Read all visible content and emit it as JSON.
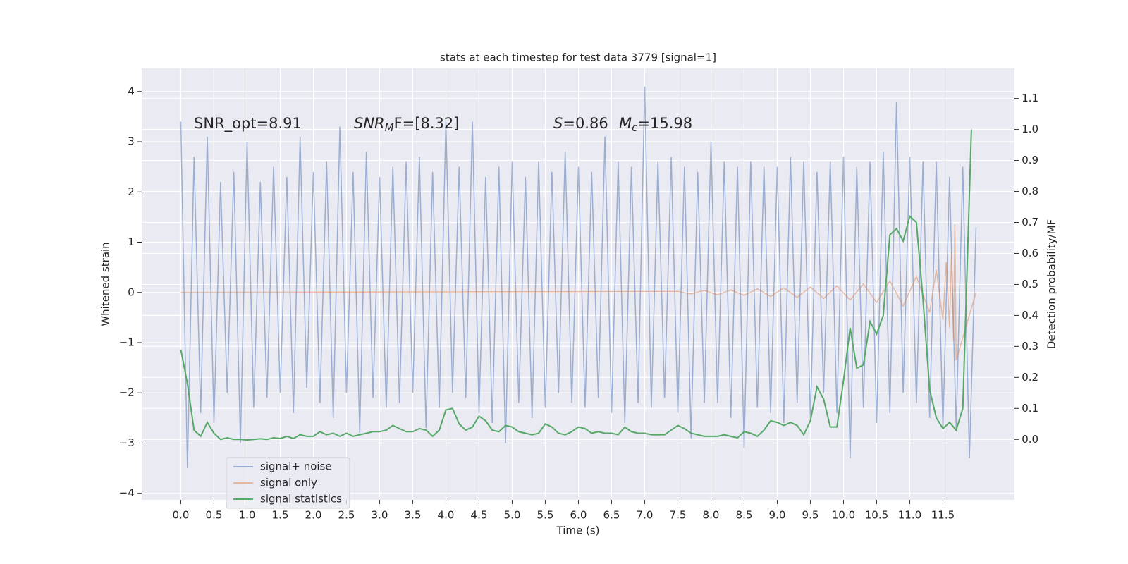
{
  "chart_data": {
    "type": "line",
    "title": "stats at each timestep for test data 3779 [signal=1]",
    "xlabel": "Time (s)",
    "ylabel": "Whitened strain",
    "y2label": "Detection probability/MF",
    "xlim": [
      -0.59,
      12.58
    ],
    "ylim": [
      -4.13,
      4.46
    ],
    "y2lim": [
      -0.195,
      1.197
    ],
    "xticks": [
      {
        "value": 0,
        "label": "0.0"
      },
      0.5,
      {
        "value": 1,
        "label": "1.0"
      },
      1.5,
      {
        "value": 2,
        "label": "2.0"
      },
      2.5,
      {
        "value": 3,
        "label": "3.0"
      },
      3.5,
      {
        "value": 4,
        "label": "4.0"
      },
      4.5,
      {
        "value": 5,
        "label": "5.0"
      },
      5.5,
      {
        "value": 6,
        "label": "6.0"
      },
      6.5,
      {
        "value": 7,
        "label": "7.0"
      },
      7.5,
      {
        "value": 8,
        "label": "8.0"
      },
      8.5,
      {
        "value": 9,
        "label": "9.0"
      },
      9.5,
      {
        "value": 10,
        "label": "10.0"
      },
      10.5,
      {
        "value": 11,
        "label": "11.0"
      },
      11.5
    ],
    "yticks": [
      {
        "value": -4,
        "label": "−4"
      },
      {
        "value": -3,
        "label": "−3"
      },
      {
        "value": -2,
        "label": "−2"
      },
      {
        "value": -1,
        "label": "−1"
      },
      0,
      1,
      2,
      3,
      4
    ],
    "y2ticks": [
      {
        "value": 0,
        "label": "0.0"
      },
      0.1,
      0.2,
      0.3,
      0.4,
      0.5,
      0.6,
      0.7,
      0.8,
      0.9,
      {
        "value": 1,
        "label": "1.0"
      },
      1.1
    ],
    "grid": true,
    "legend": "lower left",
    "annotations": [
      {
        "parts": [
          {
            "text": "SNR_opt=8.91",
            "style": "normal"
          }
        ]
      },
      {
        "parts": [
          {
            "text": "SNR",
            "style": "italic"
          },
          {
            "text": "M",
            "style": "italic-sub"
          },
          {
            "text": "F=[8.32]",
            "style": "mixed"
          }
        ]
      },
      {
        "parts": [
          {
            "text": "S",
            "style": "italic"
          },
          {
            "text": "=0.86",
            "style": "normal"
          }
        ]
      },
      {
        "parts": [
          {
            "text": "M",
            "style": "italic"
          },
          {
            "text": "c",
            "style": "italic-sub"
          },
          {
            "text": "=15.98",
            "style": "normal"
          }
        ]
      }
    ],
    "series": [
      {
        "name": "signal+ noise",
        "color": "#4c72b0",
        "opacity": 0.5,
        "axis": "y",
        "x": [
          0,
          0.1,
          0.2,
          0.3,
          0.4,
          0.5,
          0.6,
          0.7,
          0.8,
          0.9,
          1,
          1.1,
          1.2,
          1.3,
          1.4,
          1.5,
          1.6,
          1.7,
          1.8,
          1.9,
          2,
          2.1,
          2.2,
          2.3,
          2.4,
          2.5,
          2.6,
          2.7,
          2.8,
          2.9,
          3,
          3.1,
          3.2,
          3.3,
          3.4,
          3.5,
          3.6,
          3.7,
          3.8,
          3.9,
          4,
          4.1,
          4.2,
          4.3,
          4.4,
          4.5,
          4.6,
          4.7,
          4.8,
          4.9,
          5,
          5.1,
          5.2,
          5.3,
          5.4,
          5.5,
          5.6,
          5.7,
          5.8,
          5.9,
          6,
          6.1,
          6.2,
          6.3,
          6.4,
          6.5,
          6.6,
          6.7,
          6.8,
          6.9,
          7,
          7.1,
          7.2,
          7.3,
          7.4,
          7.5,
          7.6,
          7.7,
          7.8,
          7.9,
          8,
          8.1,
          8.2,
          8.3,
          8.4,
          8.5,
          8.6,
          8.7,
          8.8,
          8.9,
          9,
          9.1,
          9.2,
          9.3,
          9.4,
          9.5,
          9.6,
          9.7,
          9.8,
          9.9,
          10,
          10.1,
          10.2,
          10.3,
          10.4,
          10.5,
          10.6,
          10.7,
          10.8,
          10.9,
          11,
          11.1,
          11.2,
          11.3,
          11.4,
          11.5,
          11.6,
          11.7,
          11.8,
          11.9,
          12
        ],
        "values": [
          3.4,
          -3.5,
          2.7,
          -2.4,
          3.1,
          -2.6,
          2.2,
          -2.0,
          2.4,
          -3.0,
          3.0,
          -2.3,
          2.2,
          -2.1,
          2.5,
          -2.0,
          2.3,
          -2.4,
          3.1,
          -1.9,
          2.4,
          -2.2,
          2.6,
          -2.5,
          3.3,
          -2.0,
          2.4,
          -2.8,
          2.8,
          -2.1,
          2.3,
          -2.3,
          2.5,
          -2.2,
          2.6,
          -2.0,
          2.7,
          -2.7,
          2.4,
          -2.3,
          3.4,
          -2.0,
          2.5,
          -2.1,
          3.4,
          -2.4,
          2.3,
          -2.6,
          2.5,
          -3.0,
          2.6,
          -2.2,
          2.3,
          -2.5,
          2.6,
          -2.3,
          2.4,
          -2.0,
          2.8,
          -2.2,
          2.5,
          -2.3,
          2.4,
          -2.1,
          3.1,
          -2.4,
          2.6,
          -2.6,
          2.5,
          -2.2,
          4.1,
          -2.3,
          2.6,
          -2.1,
          2.7,
          -2.4,
          2.5,
          -2.9,
          2.4,
          -2.2,
          3.0,
          -2.2,
          2.6,
          -2.5,
          2.5,
          -3.1,
          2.6,
          -2.3,
          2.5,
          -2.4,
          2.5,
          -2.6,
          2.7,
          -2.2,
          2.6,
          -2.5,
          2.4,
          -2.0,
          2.6,
          -2.4,
          2.7,
          -3.3,
          2.5,
          -2.3,
          2.6,
          -2.6,
          2.8,
          -2.4,
          3.8,
          -2.0,
          2.7,
          -2.2,
          2.6,
          -2.5,
          2.6,
          -2.7,
          2.3,
          -2.7,
          2.5,
          -3.3,
          1.3
        ]
      },
      {
        "name": "signal only",
        "color": "#dd8452",
        "opacity": 0.5,
        "axis": "y",
        "x": [
          0,
          7.5,
          7.7,
          7.9,
          8.1,
          8.3,
          8.5,
          8.7,
          8.9,
          9.1,
          9.3,
          9.5,
          9.7,
          9.9,
          10.1,
          10.3,
          10.5,
          10.7,
          10.9,
          11.1,
          11.3,
          11.4,
          11.5,
          11.55,
          11.6,
          11.63,
          11.66,
          11.68,
          11.7,
          12
        ],
        "values": [
          0,
          0.02,
          -0.03,
          0.04,
          -0.05,
          0.05,
          -0.06,
          0.07,
          -0.08,
          0.09,
          -0.1,
          0.11,
          -0.12,
          0.13,
          -0.15,
          0.17,
          -0.2,
          0.23,
          -0.27,
          0.32,
          -0.4,
          0.45,
          -0.55,
          0.6,
          -0.7,
          0.8,
          -0.95,
          1.35,
          -1.35,
          0
        ]
      },
      {
        "name": "signal statistics",
        "color": "#55a868",
        "opacity": 1,
        "axis": "y2",
        "x": [
          0,
          0.1,
          0.2,
          0.3,
          0.4,
          0.5,
          0.6,
          0.7,
          0.8,
          0.9,
          1,
          1.1,
          1.2,
          1.3,
          1.4,
          1.5,
          1.6,
          1.7,
          1.8,
          1.9,
          2,
          2.1,
          2.2,
          2.3,
          2.4,
          2.5,
          2.6,
          2.7,
          2.8,
          2.9,
          3,
          3.1,
          3.2,
          3.3,
          3.4,
          3.5,
          3.6,
          3.7,
          3.8,
          3.9,
          4,
          4.1,
          4.2,
          4.3,
          4.4,
          4.5,
          4.6,
          4.7,
          4.8,
          4.9,
          5,
          5.1,
          5.2,
          5.3,
          5.4,
          5.5,
          5.6,
          5.7,
          5.8,
          5.9,
          6,
          6.1,
          6.2,
          6.3,
          6.4,
          6.5,
          6.6,
          6.7,
          6.8,
          6.9,
          7,
          7.1,
          7.2,
          7.3,
          7.4,
          7.5,
          7.6,
          7.7,
          7.8,
          7.9,
          8,
          8.1,
          8.2,
          8.3,
          8.4,
          8.5,
          8.6,
          8.7,
          8.8,
          8.9,
          9,
          9.1,
          9.2,
          9.3,
          9.4,
          9.5,
          9.6,
          9.7,
          9.8,
          9.9,
          10,
          10.1,
          10.2,
          10.3,
          10.4,
          10.5,
          10.6,
          10.7,
          10.8,
          10.9,
          11,
          11.1,
          11.2,
          11.3,
          11.4,
          11.5,
          11.6,
          11.7,
          11.8,
          11.93
        ],
        "values": [
          0.29,
          0.18,
          0.03,
          0.01,
          0.055,
          0.02,
          0,
          0.005,
          0,
          0,
          -0.002,
          0,
          0.002,
          0,
          0.005,
          0.003,
          0.01,
          0.003,
          0.015,
          0.01,
          0.01,
          0.025,
          0.015,
          0.02,
          0.01,
          0.02,
          0.01,
          0.015,
          0.02,
          0.025,
          0.025,
          0.03,
          0.045,
          0.035,
          0.025,
          0.025,
          0.035,
          0.03,
          0.01,
          0.03,
          0.095,
          0.1,
          0.05,
          0.03,
          0.04,
          0.075,
          0.06,
          0.03,
          0.025,
          0.045,
          0.04,
          0.025,
          0.02,
          0.015,
          0.02,
          0.05,
          0.04,
          0.02,
          0.015,
          0.025,
          0.04,
          0.035,
          0.02,
          0.025,
          0.02,
          0.02,
          0.015,
          0.04,
          0.025,
          0.02,
          0.02,
          0.015,
          0.015,
          0.015,
          0.03,
          0.045,
          0.035,
          0.02,
          0.015,
          0.01,
          0.01,
          0.01,
          0.015,
          0.01,
          0.005,
          0.025,
          0.02,
          0.01,
          0.03,
          0.06,
          0.055,
          0.045,
          0.055,
          0.045,
          0.015,
          0.06,
          0.17,
          0.13,
          0.04,
          0.04,
          0.19,
          0.36,
          0.23,
          0.24,
          0.38,
          0.34,
          0.4,
          0.66,
          0.68,
          0.64,
          0.72,
          0.7,
          0.45,
          0.16,
          0.07,
          0.035,
          0.055,
          0.03,
          0.1,
          1.0
        ]
      }
    ]
  }
}
